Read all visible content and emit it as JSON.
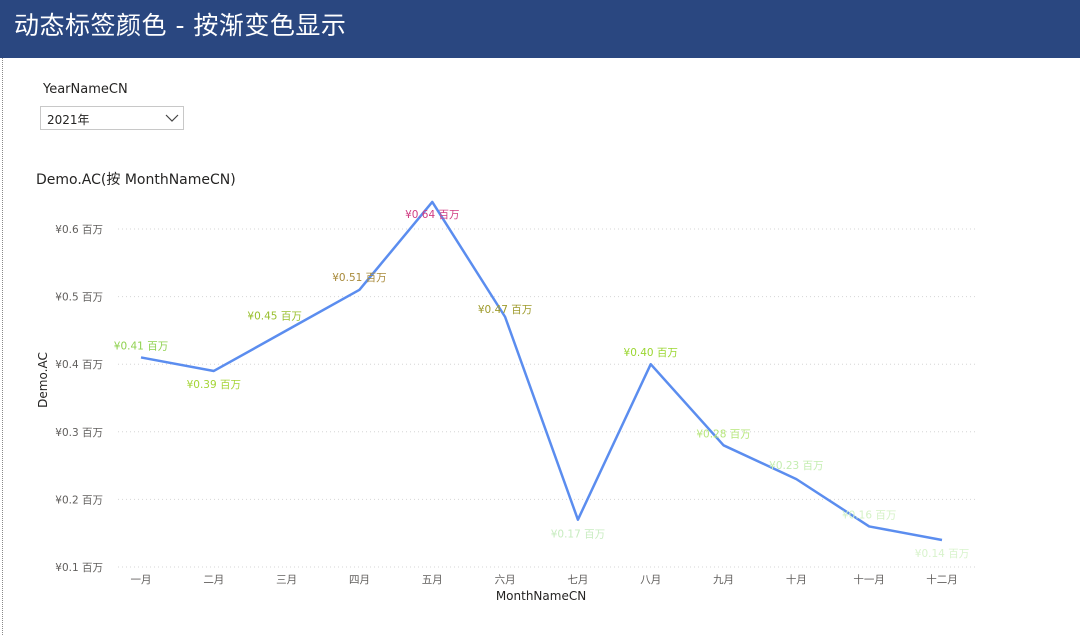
{
  "header": {
    "title": "动态标签颜色 - 按渐变色显示"
  },
  "slicer": {
    "label": "YearNameCN",
    "selected": "2021年"
  },
  "chart_data": {
    "type": "line",
    "title": "Demo.AC(按 MonthNameCN)",
    "xlabel": "MonthNameCN",
    "ylabel": "Demo.AC",
    "categories": [
      "一月",
      "二月",
      "三月",
      "四月",
      "五月",
      "六月",
      "七月",
      "八月",
      "九月",
      "十月",
      "十一月",
      "十二月"
    ],
    "values": [
      0.41,
      0.39,
      0.45,
      0.51,
      0.64,
      0.47,
      0.17,
      0.4,
      0.28,
      0.23,
      0.16,
      0.14
    ],
    "data_labels": [
      "¥0.41 百万",
      "¥0.39 百万",
      "¥0.45 百万",
      "¥0.51 百万",
      "¥0.64 百万",
      "¥0.47 百万",
      "¥0.17 百万",
      "¥0.40 百万",
      "¥0.28 百万",
      "¥0.23 百万",
      "¥0.16 百万",
      "¥0.14 百万"
    ],
    "label_colors": [
      "#8fd14f",
      "#a4d435",
      "#98bf2c",
      "#a88a3a",
      "#d03c82",
      "#9e9a2b",
      "#c8ecc0",
      "#9ad630",
      "#b6e67a",
      "#c4edb0",
      "#d4f2c6",
      "#d8f3cc"
    ],
    "yticks": [
      0.1,
      0.2,
      0.3,
      0.4,
      0.5,
      0.6
    ],
    "ytick_labels": [
      "¥0.1 百万",
      "¥0.2 百万",
      "¥0.3 百万",
      "¥0.4 百万",
      "¥0.5 百万",
      "¥0.6 百万"
    ],
    "ylim": [
      0.1,
      0.6
    ],
    "grid": true,
    "line_color": "#5b8def"
  }
}
